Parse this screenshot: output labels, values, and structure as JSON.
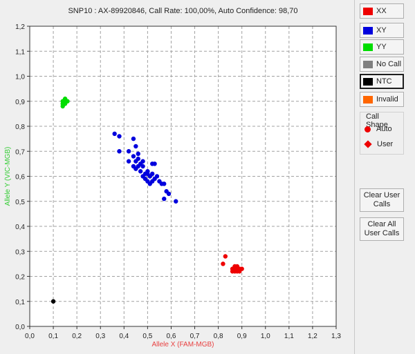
{
  "chart_data": {
    "type": "scatter",
    "title": "SNP10 : AX-89920846, Call Rate: 100,00%, Auto Confidence: 98,70",
    "xlabel": "Allele X (FAM-MGB)",
    "ylabel": "Allele Y (VIC-MGB)",
    "xlim": [
      0.0,
      1.3
    ],
    "ylim": [
      0.0,
      1.2
    ],
    "x_ticks": [
      "0,0",
      "0,1",
      "0,2",
      "0,3",
      "0,4",
      "0,5",
      "0,6",
      "0,7",
      "0,8",
      "0,9",
      "1,0",
      "1,1",
      "1,2",
      "1,3"
    ],
    "y_ticks": [
      "0,0",
      "0,1",
      "0,2",
      "0,3",
      "0,4",
      "0,5",
      "0,6",
      "0,7",
      "0,8",
      "0,9",
      "1,0",
      "1,1",
      "1,2"
    ],
    "grid": true,
    "series": [
      {
        "name": "XX",
        "color": "#ee0000",
        "points": [
          [
            0.83,
            0.28
          ],
          [
            0.82,
            0.25
          ],
          [
            0.86,
            0.22
          ],
          [
            0.87,
            0.24
          ],
          [
            0.88,
            0.23
          ],
          [
            0.89,
            0.22
          ],
          [
            0.87,
            0.22
          ],
          [
            0.88,
            0.24
          ],
          [
            0.9,
            0.23
          ],
          [
            0.86,
            0.23
          ],
          [
            0.89,
            0.23
          ],
          [
            0.88,
            0.22
          ],
          [
            0.87,
            0.23
          ]
        ]
      },
      {
        "name": "XY",
        "color": "#0000dd",
        "points": [
          [
            0.36,
            0.77
          ],
          [
            0.38,
            0.76
          ],
          [
            0.38,
            0.7
          ],
          [
            0.42,
            0.7
          ],
          [
            0.44,
            0.75
          ],
          [
            0.45,
            0.72
          ],
          [
            0.42,
            0.66
          ],
          [
            0.44,
            0.68
          ],
          [
            0.45,
            0.66
          ],
          [
            0.46,
            0.67
          ],
          [
            0.44,
            0.64
          ],
          [
            0.45,
            0.63
          ],
          [
            0.46,
            0.64
          ],
          [
            0.47,
            0.65
          ],
          [
            0.48,
            0.64
          ],
          [
            0.47,
            0.62
          ],
          [
            0.48,
            0.6
          ],
          [
            0.49,
            0.61
          ],
          [
            0.5,
            0.62
          ],
          [
            0.49,
            0.59
          ],
          [
            0.5,
            0.58
          ],
          [
            0.51,
            0.6
          ],
          [
            0.52,
            0.61
          ],
          [
            0.51,
            0.57
          ],
          [
            0.52,
            0.58
          ],
          [
            0.53,
            0.59
          ],
          [
            0.52,
            0.65
          ],
          [
            0.53,
            0.65
          ],
          [
            0.54,
            0.6
          ],
          [
            0.55,
            0.58
          ],
          [
            0.56,
            0.57
          ],
          [
            0.57,
            0.57
          ],
          [
            0.58,
            0.54
          ],
          [
            0.57,
            0.51
          ],
          [
            0.59,
            0.53
          ],
          [
            0.62,
            0.5
          ],
          [
            0.46,
            0.69
          ],
          [
            0.48,
            0.66
          ],
          [
            0.5,
            0.61
          ]
        ]
      },
      {
        "name": "YY",
        "color": "#00dd00",
        "points": [
          [
            0.14,
            0.9
          ],
          [
            0.15,
            0.91
          ],
          [
            0.14,
            0.89
          ],
          [
            0.15,
            0.9
          ],
          [
            0.14,
            0.88
          ],
          [
            0.15,
            0.89
          ],
          [
            0.16,
            0.9
          ]
        ]
      },
      {
        "name": "NTC",
        "color": "#000000",
        "points": [
          [
            0.1,
            0.1
          ]
        ]
      }
    ]
  },
  "legend": [
    {
      "label": "XX",
      "color": "#ee0000"
    },
    {
      "label": "XY",
      "color": "#0000dd"
    },
    {
      "label": "YY",
      "color": "#00dd00"
    },
    {
      "label": "No Call",
      "color": "#808080"
    },
    {
      "label": "NTC",
      "color": "#000000",
      "selected": true
    },
    {
      "label": "Invalid",
      "color": "#ff6600"
    }
  ],
  "call_shape": {
    "title": "Call Shape",
    "auto_label": "Auto",
    "user_label": "User"
  },
  "buttons": {
    "clear_user_calls": "Clear User Calls",
    "clear_all_user_calls": "Clear All User Calls"
  }
}
